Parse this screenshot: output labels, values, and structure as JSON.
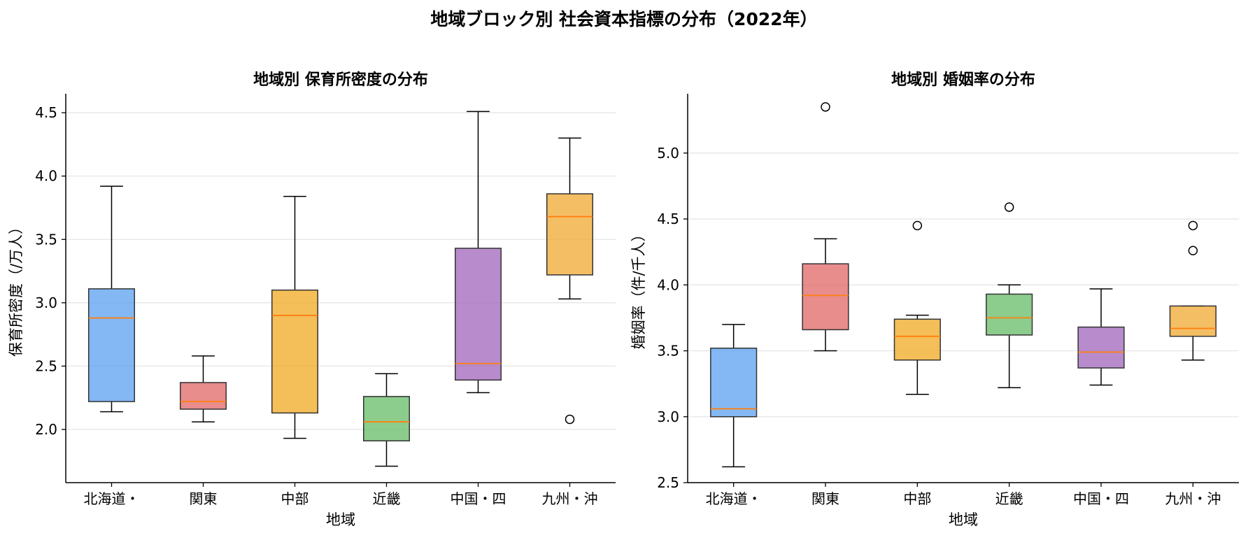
{
  "suptitle": "地域ブロック別 社会資本指標の分布（2022年）",
  "colors": {
    "hokkaido": "#5aa0f0",
    "kanto": "#e06666",
    "chubu": "#f0a820",
    "kinki": "#66bb66",
    "chugoku": "#a066bb",
    "kyushu": "#f0a830",
    "median": "#ff7f0e",
    "grid": "#e6e6e6"
  },
  "chart_data": [
    {
      "type": "box",
      "title": "地域別 保育所密度の分布",
      "xlabel": "地域",
      "ylabel": "保育所密度（/万人）",
      "ylim": [
        1.58,
        4.65
      ],
      "yticks": [
        "2.0",
        "2.5",
        "3.0",
        "3.5",
        "4.0",
        "4.5"
      ],
      "grid": "y",
      "categories": [
        "北海道・",
        "関東",
        "中部",
        "近畿",
        "中国・四",
        "九州・沖"
      ],
      "boxes": [
        {
          "whislo": 2.14,
          "q1": 2.22,
          "med": 2.88,
          "q3": 3.11,
          "whishi": 3.92,
          "fliers": [],
          "color_key": "hokkaido"
        },
        {
          "whislo": 2.06,
          "q1": 2.16,
          "med": 2.22,
          "q3": 2.37,
          "whishi": 2.58,
          "fliers": [],
          "color_key": "kanto"
        },
        {
          "whislo": 1.93,
          "q1": 2.13,
          "med": 2.9,
          "q3": 3.1,
          "whishi": 3.84,
          "fliers": [],
          "color_key": "chubu"
        },
        {
          "whislo": 1.71,
          "q1": 1.91,
          "med": 2.06,
          "q3": 2.26,
          "whishi": 2.44,
          "fliers": [],
          "color_key": "kinki"
        },
        {
          "whislo": 2.29,
          "q1": 2.39,
          "med": 2.52,
          "q3": 3.43,
          "whishi": 4.51,
          "fliers": [],
          "color_key": "chugoku"
        },
        {
          "whislo": 3.03,
          "q1": 3.22,
          "med": 3.68,
          "q3": 3.86,
          "whishi": 4.3,
          "fliers": [
            2.08
          ],
          "color_key": "kyushu"
        }
      ]
    },
    {
      "type": "box",
      "title": "地域別 婚姻率の分布",
      "xlabel": "地域",
      "ylabel": "婚姻率（件/千人）",
      "ylim": [
        2.5,
        5.45
      ],
      "yticks": [
        "2.5",
        "3.0",
        "3.5",
        "4.0",
        "4.5",
        "5.0"
      ],
      "grid": "y",
      "categories": [
        "北海道・",
        "関東",
        "中部",
        "近畿",
        "中国・四",
        "九州・沖"
      ],
      "boxes": [
        {
          "whislo": 2.62,
          "q1": 3.0,
          "med": 3.06,
          "q3": 3.52,
          "whishi": 3.7,
          "fliers": [],
          "color_key": "hokkaido"
        },
        {
          "whislo": 3.5,
          "q1": 3.66,
          "med": 3.92,
          "q3": 4.16,
          "whishi": 4.35,
          "fliers": [
            5.35
          ],
          "color_key": "kanto"
        },
        {
          "whislo": 3.17,
          "q1": 3.43,
          "med": 3.61,
          "q3": 3.74,
          "whishi": 3.77,
          "fliers": [
            4.45
          ],
          "color_key": "chubu"
        },
        {
          "whislo": 3.22,
          "q1": 3.62,
          "med": 3.75,
          "q3": 3.93,
          "whishi": 4.0,
          "fliers": [
            4.59
          ],
          "color_key": "kinki"
        },
        {
          "whislo": 3.24,
          "q1": 3.37,
          "med": 3.49,
          "q3": 3.68,
          "whishi": 3.97,
          "fliers": [],
          "color_key": "chugoku"
        },
        {
          "whislo": 3.43,
          "q1": 3.61,
          "med": 3.67,
          "q3": 3.84,
          "whishi": 3.84,
          "fliers": [
            4.45,
            4.26
          ],
          "color_key": "kyushu"
        }
      ]
    }
  ]
}
